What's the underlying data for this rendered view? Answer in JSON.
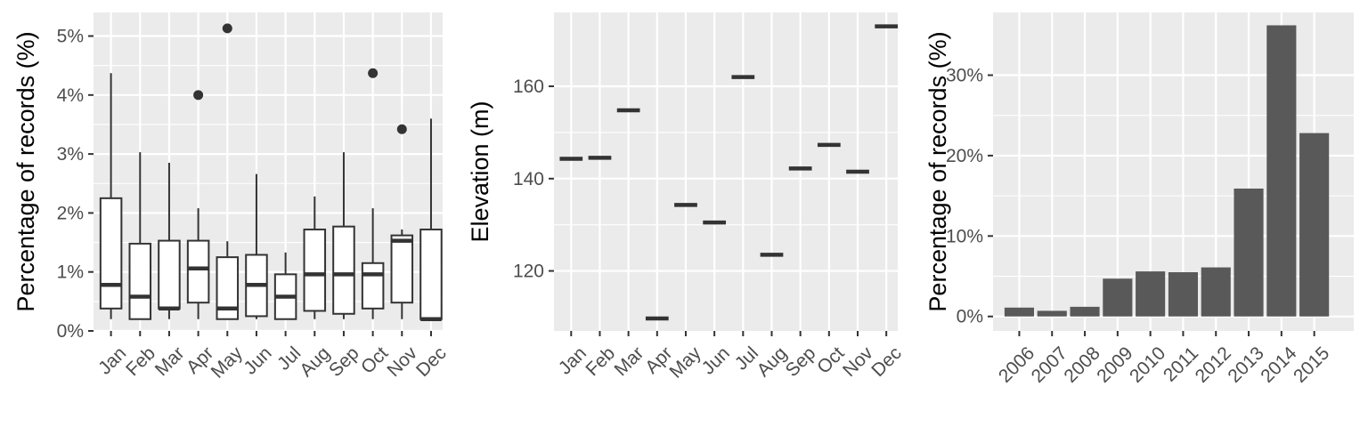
{
  "colors": {
    "panel_background": "#EBEBEB",
    "grid_major": "#FFFFFF",
    "box_fill": "#FFFFFF",
    "box_stroke": "#333333",
    "bar_fill": "#595959",
    "tick_text": "#4D4D4D"
  },
  "chart_data": [
    {
      "type": "box",
      "title": "",
      "xlabel": "",
      "ylabel": "Percentage of records (%)",
      "ylim": [
        0,
        5.4
      ],
      "y_ticks": [
        0,
        1,
        2,
        3,
        4,
        5
      ],
      "y_tick_labels": [
        "0%",
        "1%",
        "2%",
        "3%",
        "4%",
        "5%"
      ],
      "grid": true,
      "categories": [
        "Jan",
        "Feb",
        "Mar",
        "Apr",
        "May",
        "Jun",
        "Jul",
        "Aug",
        "Sep",
        "Oct",
        "Nov",
        "Dec"
      ],
      "boxes": [
        {
          "whisker_low": 0.2,
          "q1": 0.38,
          "median": 0.78,
          "q3": 2.25,
          "whisker_high": 4.37,
          "outliers": []
        },
        {
          "whisker_low": 0.2,
          "q1": 0.2,
          "median": 0.58,
          "q3": 1.48,
          "whisker_high": 3.03,
          "outliers": []
        },
        {
          "whisker_low": 0.2,
          "q1": 0.38,
          "median": 0.38,
          "q3": 1.53,
          "whisker_high": 2.85,
          "outliers": []
        },
        {
          "whisker_low": 0.2,
          "q1": 0.48,
          "median": 1.06,
          "q3": 1.53,
          "whisker_high": 2.08,
          "outliers": [
            4.0
          ]
        },
        {
          "whisker_low": 0.2,
          "q1": 0.2,
          "median": 0.38,
          "q3": 1.25,
          "whisker_high": 1.52,
          "outliers": [
            5.13
          ]
        },
        {
          "whisker_low": 0.2,
          "q1": 0.25,
          "median": 0.78,
          "q3": 1.29,
          "whisker_high": 2.66,
          "outliers": []
        },
        {
          "whisker_low": 0.2,
          "q1": 0.2,
          "median": 0.58,
          "q3": 0.96,
          "whisker_high": 1.33,
          "outliers": []
        },
        {
          "whisker_low": 0.2,
          "q1": 0.34,
          "median": 0.96,
          "q3": 1.72,
          "whisker_high": 2.28,
          "outliers": []
        },
        {
          "whisker_low": 0.2,
          "q1": 0.29,
          "median": 0.96,
          "q3": 1.77,
          "whisker_high": 3.03,
          "outliers": []
        },
        {
          "whisker_low": 0.2,
          "q1": 0.38,
          "median": 0.96,
          "q3": 1.15,
          "whisker_high": 2.08,
          "outliers": [
            4.37
          ]
        },
        {
          "whisker_low": 0.2,
          "q1": 0.48,
          "median": 1.53,
          "q3": 1.62,
          "whisker_high": 1.72,
          "outliers": [
            3.42
          ]
        },
        {
          "whisker_low": 0.2,
          "q1": 0.2,
          "median": 0.2,
          "q3": 1.72,
          "whisker_high": 3.6,
          "outliers": []
        }
      ]
    },
    {
      "type": "crossbar",
      "title": "",
      "xlabel": "",
      "ylabel": "Elevation (m)",
      "ylim": [
        107,
        176
      ],
      "y_ticks": [
        120,
        140,
        160
      ],
      "y_tick_labels": [
        "120",
        "140",
        "160"
      ],
      "grid": true,
      "categories": [
        "Jan",
        "Feb",
        "Mar",
        "Apr",
        "May",
        "Jun",
        "Jul",
        "Aug",
        "Sep",
        "Oct",
        "Nov",
        "Dec"
      ],
      "values": [
        144.3,
        144.5,
        154.8,
        109.7,
        134.3,
        130.5,
        162.0,
        123.5,
        142.2,
        147.3,
        141.5,
        173.0
      ]
    },
    {
      "type": "bar",
      "title": "",
      "xlabel": "",
      "ylabel": "Percentage of records (%)",
      "ylim": [
        -0.018,
        0.378
      ],
      "y_ticks": [
        0,
        0.1,
        0.2,
        0.3
      ],
      "y_tick_labels": [
        "0%",
        "10%",
        "20%",
        "30%"
      ],
      "grid": true,
      "categories": [
        "2006",
        "2007",
        "2008",
        "2009",
        "2010",
        "2011",
        "2012",
        "2013",
        "2014",
        "2015"
      ],
      "values": [
        0.011,
        0.007,
        0.012,
        0.047,
        0.056,
        0.055,
        0.061,
        0.159,
        0.362,
        0.228
      ]
    }
  ]
}
